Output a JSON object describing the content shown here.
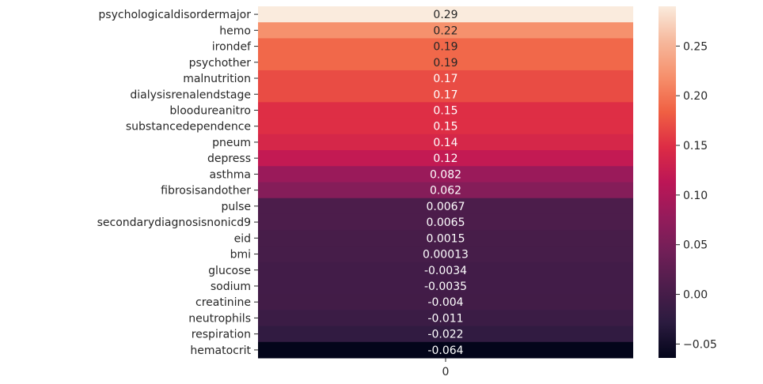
{
  "chart_data": {
    "type": "heatmap",
    "title": "",
    "xlabel": "",
    "ylabel": "",
    "x_categories": [
      "0"
    ],
    "rows": [
      {
        "name": "psychologicaldisordermajor",
        "value": 0.29,
        "label": "0.29"
      },
      {
        "name": "hemo",
        "value": 0.22,
        "label": "0.22"
      },
      {
        "name": "irondef",
        "value": 0.19,
        "label": "0.19"
      },
      {
        "name": "psychother",
        "value": 0.19,
        "label": "0.19"
      },
      {
        "name": "malnutrition",
        "value": 0.17,
        "label": "0.17"
      },
      {
        "name": "dialysisrenalendstage",
        "value": 0.17,
        "label": "0.17"
      },
      {
        "name": "bloodureanitro",
        "value": 0.15,
        "label": "0.15"
      },
      {
        "name": "substancedependence",
        "value": 0.15,
        "label": "0.15"
      },
      {
        "name": "pneum",
        "value": 0.14,
        "label": "0.14"
      },
      {
        "name": "depress",
        "value": 0.12,
        "label": "0.12"
      },
      {
        "name": "asthma",
        "value": 0.082,
        "label": "0.082"
      },
      {
        "name": "fibrosisandother",
        "value": 0.062,
        "label": "0.062"
      },
      {
        "name": "pulse",
        "value": 0.0067,
        "label": "0.0067"
      },
      {
        "name": "secondarydiagnosisnonicd9",
        "value": 0.0065,
        "label": "0.0065"
      },
      {
        "name": "eid",
        "value": 0.0015,
        "label": "0.0015"
      },
      {
        "name": "bmi",
        "value": 0.00013,
        "label": "0.00013"
      },
      {
        "name": "glucose",
        "value": -0.0034,
        "label": "-0.0034"
      },
      {
        "name": "sodium",
        "value": -0.0035,
        "label": "-0.0035"
      },
      {
        "name": "creatinine",
        "value": -0.004,
        "label": "-0.004"
      },
      {
        "name": "neutrophils",
        "value": -0.011,
        "label": "-0.011"
      },
      {
        "name": "respiration",
        "value": -0.022,
        "label": "-0.022"
      },
      {
        "name": "hematocrit",
        "value": -0.064,
        "label": "-0.064"
      }
    ],
    "colorbar": {
      "vmin": -0.064,
      "vmax": 0.29,
      "ticks": [
        {
          "value": 0.25,
          "label": "0.25"
        },
        {
          "value": 0.2,
          "label": "0.20"
        },
        {
          "value": 0.15,
          "label": "0.15"
        },
        {
          "value": 0.1,
          "label": "0.10"
        },
        {
          "value": 0.05,
          "label": "0.05"
        },
        {
          "value": 0.0,
          "label": "0.00"
        },
        {
          "value": -0.05,
          "label": "−0.05"
        }
      ],
      "colormap": "rocket",
      "stops": [
        "#03051a",
        "#2b1b3f",
        "#4c1d4b",
        "#701f57",
        "#951b5b",
        "#bc1656",
        "#dd2c45",
        "#f06043",
        "#f6906c",
        "#f6b89c",
        "#faebdd"
      ]
    }
  }
}
